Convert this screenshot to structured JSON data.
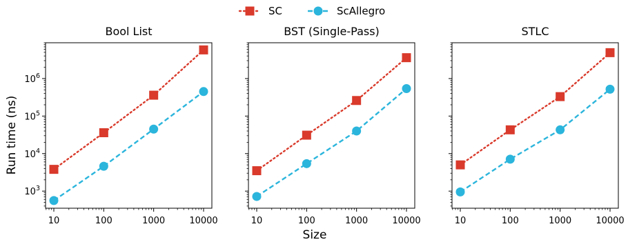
{
  "chart_data": {
    "type": "line",
    "legend": {
      "placement": "top-center",
      "entries": [
        {
          "name": "SC",
          "color": "#d93a2b",
          "marker": "square",
          "linestyle": "dotted"
        },
        {
          "name": "ScAllegro",
          "color": "#2bb5dc",
          "marker": "circle",
          "linestyle": "dashed"
        }
      ]
    },
    "xlabel": "Size",
    "ylabel": "Run time (ns)",
    "xscale": "log",
    "yscale": "log",
    "sharey": true,
    "grid": false,
    "x": [
      10,
      100,
      1000,
      10000
    ],
    "x_tick_labels": [
      "10",
      "100",
      "1000",
      "10000"
    ],
    "y_tick_labels": [
      {
        "base": "10",
        "exp": "3",
        "value": 1000
      },
      {
        "base": "10",
        "exp": "4",
        "value": 10000
      },
      {
        "base": "10",
        "exp": "5",
        "value": 100000
      },
      {
        "base": "10",
        "exp": "6",
        "value": 1000000
      }
    ],
    "ylim": [
      350,
      9000000
    ],
    "panels": [
      {
        "title": "Bool List",
        "series": [
          {
            "name": "SC",
            "values": [
              3800,
              36000,
              360000,
              5800000
            ]
          },
          {
            "name": "ScAllegro",
            "values": [
              560,
              4600,
              45000,
              450000
            ]
          }
        ]
      },
      {
        "title": "BST (Single-Pass)",
        "series": [
          {
            "name": "SC",
            "values": [
              3500,
              31000,
              260000,
              3600000
            ]
          },
          {
            "name": "ScAllegro",
            "values": [
              720,
              5400,
              40000,
              540000
            ]
          }
        ]
      },
      {
        "title": "STLC",
        "series": [
          {
            "name": "SC",
            "values": [
              5000,
              43000,
              330000,
              4900000
            ]
          },
          {
            "name": "ScAllegro",
            "values": [
              950,
              7100,
              43000,
              520000
            ]
          }
        ]
      }
    ]
  }
}
